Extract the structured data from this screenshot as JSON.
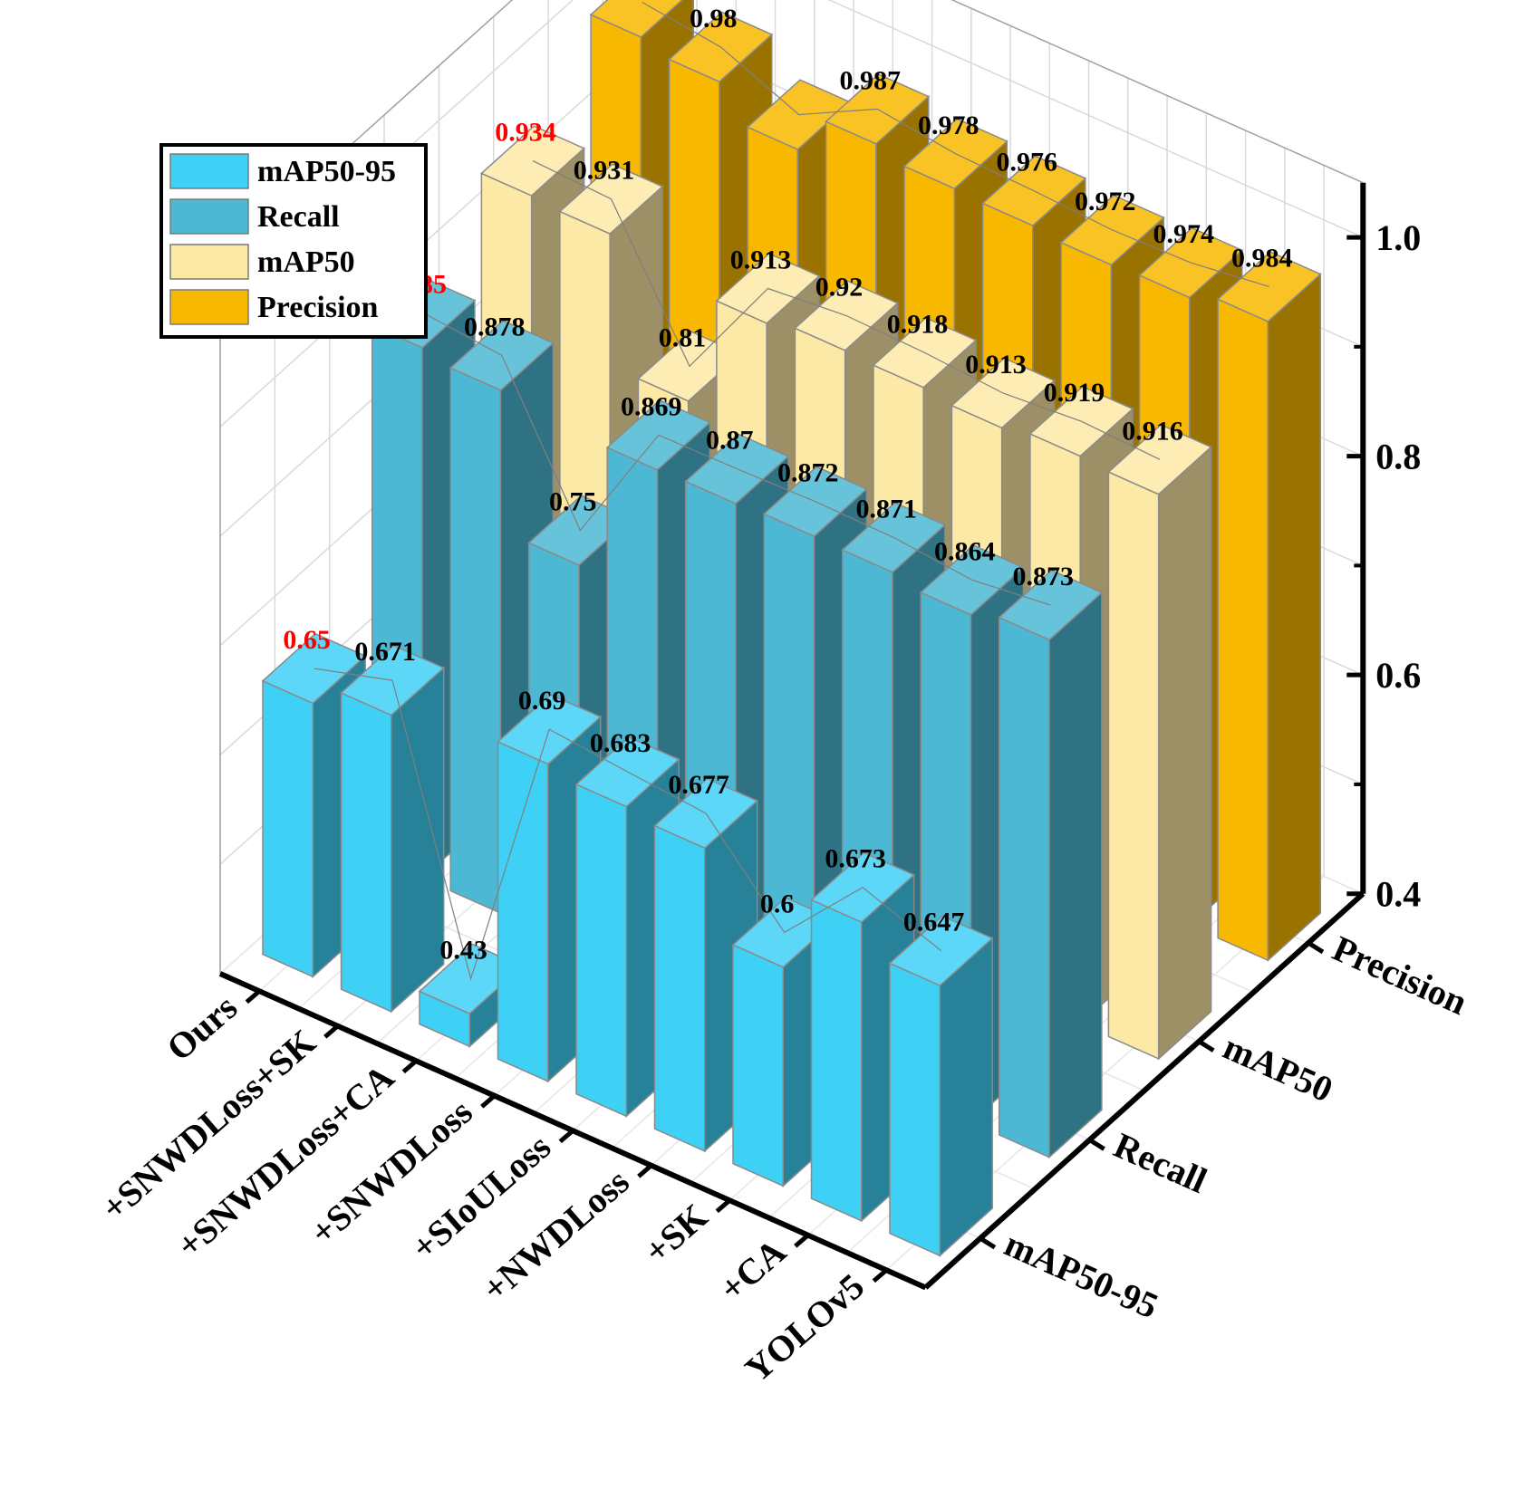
{
  "chart_data": {
    "type": "bar",
    "subtype": "3d-grouped-bar",
    "title": "",
    "x_axis_title": "",
    "y_axis_title": "",
    "z_axis_title": "",
    "categories": [
      "Ours",
      "+SNWDLoss+SK",
      "+SNWDLoss+CA",
      "+SNWDLoss",
      "+SIoULoss",
      "+NWDLoss",
      "+SK",
      "+CA",
      "YOLOv5"
    ],
    "metrics": [
      "mAP50-95",
      "Recall",
      "mAP50",
      "Precision"
    ],
    "zlim": [
      0.4,
      1.05
    ],
    "z_ticks": [
      "0.4",
      "0.6",
      "0.8",
      "1.0"
    ],
    "z_tick_values": [
      0.4,
      0.6,
      0.8,
      1.0
    ],
    "grid": true,
    "legend_position": "top-left",
    "highlight_color": "#ff0000",
    "label_color": "#000000",
    "series": [
      {
        "name": "mAP50-95",
        "color": "#3fd0f5",
        "values": [
          0.65,
          0.671,
          0.43,
          0.69,
          0.683,
          0.677,
          0.6,
          0.673,
          0.647
        ]
      },
      {
        "name": "Recall",
        "color": "#4cb8d4",
        "values": [
          0.885,
          0.878,
          0.75,
          0.869,
          0.87,
          0.872,
          0.871,
          0.864,
          0.873
        ]
      },
      {
        "name": "mAP50",
        "color": "#fde9a6",
        "values": [
          0.934,
          0.931,
          0.81,
          0.913,
          0.92,
          0.918,
          0.913,
          0.919,
          0.916
        ]
      },
      {
        "name": "Precision",
        "color": "#f8b800",
        "values": [
          0.989,
          0.98,
          0.95,
          0.987,
          0.978,
          0.976,
          0.972,
          0.974,
          0.984
        ]
      }
    ],
    "value_labels": [
      [
        "0.65",
        "0.671",
        "0.43",
        "0.69",
        "0.683",
        "0.677",
        "0.6",
        "0.673",
        "0.647"
      ],
      [
        "0.885",
        "0.878",
        "0.75",
        "0.869",
        "0.87",
        "0.872",
        "0.871",
        "0.864",
        "0.873"
      ],
      [
        "0.934",
        "0.931",
        "0.81",
        "0.913",
        "0.92",
        "0.918",
        "0.913",
        "0.919",
        "0.916"
      ],
      [
        "0.989",
        "0.98",
        "",
        "0.987",
        "0.978",
        "0.976",
        "0.972",
        "0.974",
        "0.984"
      ]
    ],
    "highlighted": [
      [
        true,
        false,
        false,
        false,
        false,
        false,
        false,
        false,
        false
      ],
      [
        true,
        false,
        false,
        false,
        false,
        false,
        false,
        false,
        false
      ],
      [
        true,
        false,
        false,
        false,
        false,
        false,
        false,
        false,
        false
      ],
      [
        true,
        false,
        false,
        false,
        false,
        false,
        false,
        false,
        false
      ]
    ]
  }
}
